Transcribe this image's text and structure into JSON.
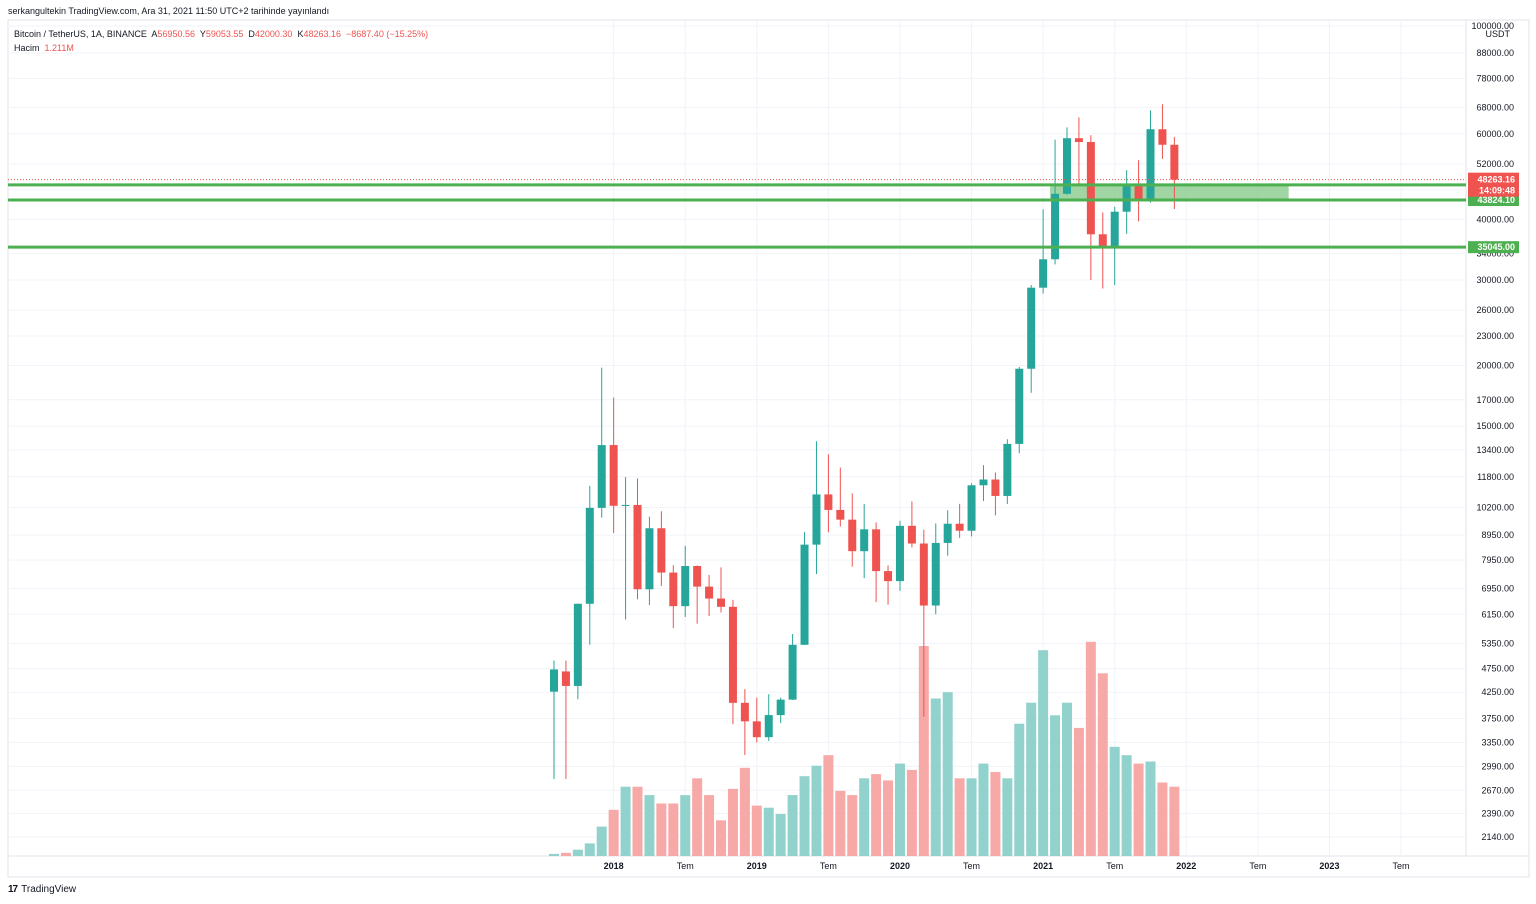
{
  "header": {
    "published": "serkangultekin TradingView.com, Ara 31, 2021 11:50 UTC+2 tarihinde yayınlandı"
  },
  "legend": {
    "symbol": "Bitcoin / TetherUS, 1A, BINANCE",
    "open_key": "A",
    "open": "56950.56",
    "high_key": "Y",
    "high": "59053.55",
    "low_key": "D",
    "low": "42000.30",
    "close_key": "K",
    "close": "48263.16",
    "change": "−8687.40 (−15.25%)",
    "volume_key": "Hacim",
    "volume": "1.211M"
  },
  "footer": {
    "brand": "TradingView",
    "logo": "tradingview-logo-icon"
  },
  "colors": {
    "up": "#26a69a",
    "down": "#ef5350",
    "up_volume": "#92d2cc",
    "down_volume": "#f7a9a7",
    "level": "#4caf50",
    "zone": "#81c784"
  },
  "chart_data": {
    "type": "candlestick",
    "title": "Bitcoin / TetherUS, 1A, BINANCE",
    "y_scale": "log",
    "ylabel": "USDT",
    "ylim": [
      2050,
      100000
    ],
    "grid": true,
    "y_ticks": [
      "100000.00",
      "88000.00",
      "78000.00",
      "68000.00",
      "60000.00",
      "52000.00",
      "46000.00",
      "40000.00",
      "34000.00",
      "30000.00",
      "26000.00",
      "23000.00",
      "20000.00",
      "17000.00",
      "15000.00",
      "13400.00",
      "11800.00",
      "10200.00",
      "8950.00",
      "7950.00",
      "6950.00",
      "6150.00",
      "5350.00",
      "4750.00",
      "4250.00",
      "3750.00",
      "3350.00",
      "2990.00",
      "2670.00",
      "2390.00",
      "2140.00"
    ],
    "x_ticks": [
      "2018",
      "Tem",
      "2019",
      "Tem",
      "2020",
      "Tem",
      "2021",
      "Tem",
      "2022",
      "Tem",
      "2023",
      "Tem"
    ],
    "x_tick_bold": [
      true,
      false,
      true,
      false,
      true,
      false,
      true,
      false,
      true,
      false,
      true,
      false
    ],
    "candles": [
      {
        "d": "2017-08",
        "o": 4261,
        "h": 4940,
        "l": 2817,
        "c": 4734,
        "v": 0.01
      },
      {
        "d": "2017-09",
        "o": 4690,
        "h": 4939,
        "l": 2817,
        "c": 4378,
        "v": 0.015
      },
      {
        "d": "2017-10",
        "o": 4378,
        "h": 6470,
        "l": 4110,
        "c": 6463,
        "v": 0.03
      },
      {
        "d": "2017-11",
        "o": 6463,
        "h": 11300,
        "l": 5325,
        "c": 10184,
        "v": 0.06
      },
      {
        "d": "2017-12",
        "o": 10184,
        "h": 19798,
        "l": 9722,
        "c": 13716,
        "v": 0.14
      },
      {
        "d": "2018-01",
        "o": 13716,
        "h": 17176,
        "l": 9035,
        "c": 10285,
        "v": 0.22
      },
      {
        "d": "2018-02",
        "o": 10285,
        "h": 11786,
        "l": 6000,
        "c": 10326,
        "v": 0.33
      },
      {
        "d": "2018-03",
        "o": 10326,
        "h": 11710,
        "l": 6600,
        "c": 6923,
        "v": 0.33
      },
      {
        "d": "2018-04",
        "o": 6923,
        "h": 9765,
        "l": 6425,
        "c": 9246,
        "v": 0.29
      },
      {
        "d": "2018-05",
        "o": 9246,
        "h": 10020,
        "l": 7032,
        "c": 7494,
        "v": 0.25
      },
      {
        "d": "2018-06",
        "o": 7494,
        "h": 7760,
        "l": 5755,
        "c": 6391,
        "v": 0.25
      },
      {
        "d": "2018-07",
        "o": 6391,
        "h": 8507,
        "l": 6071,
        "c": 7730,
        "v": 0.29
      },
      {
        "d": "2018-08",
        "o": 7730,
        "h": 7750,
        "l": 5880,
        "c": 7011,
        "v": 0.37
      },
      {
        "d": "2018-09",
        "o": 7011,
        "h": 7410,
        "l": 6100,
        "c": 6626,
        "v": 0.29
      },
      {
        "d": "2018-10",
        "o": 6626,
        "h": 7680,
        "l": 6200,
        "c": 6371,
        "v": 0.17
      },
      {
        "d": "2018-11",
        "o": 6371,
        "h": 6586,
        "l": 3652,
        "c": 4041,
        "v": 0.32
      },
      {
        "d": "2018-12",
        "o": 4041,
        "h": 4312,
        "l": 3156,
        "c": 3702,
        "v": 0.42
      },
      {
        "d": "2019-01",
        "o": 3702,
        "h": 4143,
        "l": 3349,
        "c": 3434,
        "v": 0.24
      },
      {
        "d": "2019-02",
        "o": 3434,
        "h": 4210,
        "l": 3373,
        "c": 3813,
        "v": 0.23
      },
      {
        "d": "2019-03",
        "o": 3813,
        "h": 4140,
        "l": 3670,
        "c": 4103,
        "v": 0.2
      },
      {
        "d": "2019-04",
        "o": 4103,
        "h": 5600,
        "l": 4096,
        "c": 5321,
        "v": 0.29
      },
      {
        "d": "2019-05",
        "o": 5321,
        "h": 9074,
        "l": 5316,
        "c": 8555,
        "v": 0.38
      },
      {
        "d": "2019-06",
        "o": 8555,
        "h": 13970,
        "l": 7444,
        "c": 10854,
        "v": 0.43
      },
      {
        "d": "2019-07",
        "o": 10854,
        "h": 13130,
        "l": 9070,
        "c": 10085,
        "v": 0.48
      },
      {
        "d": "2019-08",
        "o": 10085,
        "h": 12325,
        "l": 9320,
        "c": 9630,
        "v": 0.31
      },
      {
        "d": "2019-09",
        "o": 9630,
        "h": 10905,
        "l": 7710,
        "c": 8293,
        "v": 0.29
      },
      {
        "d": "2019-10",
        "o": 8293,
        "h": 10370,
        "l": 7300,
        "c": 9199,
        "v": 0.37
      },
      {
        "d": "2019-11",
        "o": 9199,
        "h": 9505,
        "l": 6515,
        "c": 7546,
        "v": 0.39
      },
      {
        "d": "2019-12",
        "o": 7546,
        "h": 7750,
        "l": 6435,
        "c": 7195,
        "v": 0.36
      },
      {
        "d": "2020-01",
        "o": 7195,
        "h": 9578,
        "l": 6871,
        "c": 9352,
        "v": 0.44
      },
      {
        "d": "2020-02",
        "o": 9352,
        "h": 10500,
        "l": 8445,
        "c": 8600,
        "v": 0.41
      },
      {
        "d": "2020-03",
        "o": 8600,
        "h": 9188,
        "l": 3782,
        "c": 6410,
        "v": 1.0
      },
      {
        "d": "2020-04",
        "o": 6410,
        "h": 9460,
        "l": 6150,
        "c": 8624,
        "v": 0.75
      },
      {
        "d": "2020-05",
        "o": 8624,
        "h": 10067,
        "l": 8117,
        "c": 9446,
        "v": 0.78
      },
      {
        "d": "2020-06",
        "o": 9446,
        "h": 10380,
        "l": 8833,
        "c": 9138,
        "v": 0.37
      },
      {
        "d": "2020-07",
        "o": 9138,
        "h": 11444,
        "l": 8893,
        "c": 11335,
        "v": 0.37
      },
      {
        "d": "2020-08",
        "o": 11335,
        "h": 12468,
        "l": 10518,
        "c": 11649,
        "v": 0.44
      },
      {
        "d": "2020-09",
        "o": 11649,
        "h": 12050,
        "l": 9825,
        "c": 10776,
        "v": 0.4
      },
      {
        "d": "2020-10",
        "o": 10776,
        "h": 14100,
        "l": 10375,
        "c": 13791,
        "v": 0.37
      },
      {
        "d": "2020-11",
        "o": 13791,
        "h": 19863,
        "l": 13195,
        "c": 19695,
        "v": 0.63
      },
      {
        "d": "2020-12",
        "o": 19695,
        "h": 29300,
        "l": 17572,
        "c": 28923,
        "v": 0.73
      },
      {
        "d": "2021-01",
        "o": 28923,
        "h": 41950,
        "l": 28130,
        "c": 33092,
        "v": 0.98
      },
      {
        "d": "2021-02",
        "o": 33092,
        "h": 58352,
        "l": 32296,
        "c": 45135,
        "v": 0.67
      },
      {
        "d": "2021-03",
        "o": 45135,
        "h": 61844,
        "l": 44961,
        "c": 58741,
        "v": 0.73
      },
      {
        "d": "2021-04",
        "o": 58741,
        "h": 64854,
        "l": 47044,
        "c": 57694,
        "v": 0.61
      },
      {
        "d": "2021-05",
        "o": 57694,
        "h": 59592,
        "l": 30000,
        "c": 37253,
        "v": 1.02
      },
      {
        "d": "2021-06",
        "o": 37253,
        "h": 41330,
        "l": 28805,
        "c": 35045,
        "v": 0.87
      },
      {
        "d": "2021-07",
        "o": 35045,
        "h": 42448,
        "l": 29278,
        "c": 41462,
        "v": 0.52
      },
      {
        "d": "2021-08",
        "o": 41462,
        "h": 50500,
        "l": 37332,
        "c": 47100,
        "v": 0.48
      },
      {
        "d": "2021-09",
        "o": 47100,
        "h": 52920,
        "l": 39600,
        "c": 43824,
        "v": 0.44
      },
      {
        "d": "2021-10",
        "o": 43824,
        "h": 66999,
        "l": 43283,
        "c": 61299,
        "v": 0.45
      },
      {
        "d": "2021-11",
        "o": 61299,
        "h": 69000,
        "l": 53256,
        "c": 56950,
        "v": 0.35
      },
      {
        "d": "2021-12",
        "o": 56950,
        "h": 59053,
        "l": 42000,
        "c": 48263,
        "v": 0.33
      }
    ],
    "horizontal_levels": [
      {
        "value": 47100.89,
        "label": "47100.89"
      },
      {
        "value": 43824.1,
        "label": "43824.10"
      },
      {
        "value": 35045.0,
        "label": "35045.00"
      }
    ],
    "zone": {
      "from": "2021-02",
      "to": "2022-10",
      "low": 43824.1,
      "high": 47100.89
    },
    "last_price": {
      "value": 48263.16,
      "label": "48263.16",
      "countdown": "14:09:48"
    }
  }
}
